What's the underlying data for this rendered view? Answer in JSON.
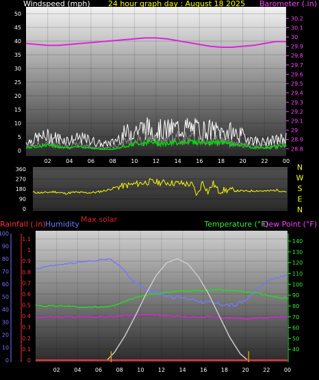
{
  "chart_data": [
    {
      "type": "line",
      "title": "24 hour graph day : August 18 2025",
      "ylabel_left": "Windspeed (mph)",
      "ylabel_right": "Barometer (.in)",
      "x_ticks": [
        "02",
        "04",
        "06",
        "08",
        "10",
        "12",
        "14",
        "16",
        "18",
        "20",
        "22",
        "00"
      ],
      "x_hours": [
        0,
        24
      ],
      "ylim_left": [
        0,
        50
      ],
      "yticks_left": [
        0,
        5,
        10,
        15,
        20,
        25,
        30,
        35,
        40,
        45,
        50
      ],
      "ylim_right": [
        28.78,
        30.25
      ],
      "yticks_right": [
        28.8,
        28.9,
        29,
        29.1,
        29.2,
        29.3,
        29.4,
        29.5,
        29.6,
        29.7,
        29.8,
        29.9,
        30,
        30.1,
        30.2
      ],
      "grid": true,
      "colors": {
        "gust": "#ffffff",
        "wind": "#888888",
        "avg": "#00dd00",
        "barometer": "#dd22dd",
        "axis_left": "#ffffff",
        "axis_right": "#ff44ff",
        "title": "#ffff00"
      },
      "series": [
        {
          "key": "barometer",
          "axis": "right",
          "x": [
            0,
            1,
            2,
            3,
            4,
            5,
            6,
            7,
            8,
            9,
            10,
            11,
            12,
            13,
            14,
            15,
            16,
            17,
            18,
            19,
            20,
            21,
            22,
            23,
            24
          ],
          "values": [
            29.93,
            29.92,
            29.91,
            29.91,
            29.92,
            29.93,
            29.94,
            29.95,
            29.96,
            29.97,
            29.98,
            29.99,
            29.99,
            29.98,
            29.96,
            29.94,
            29.92,
            29.9,
            29.89,
            29.89,
            29.9,
            29.91,
            29.93,
            29.95,
            29.95
          ]
        }
      ],
      "wind_bands": {
        "x": [
          0,
          1,
          2,
          3,
          4,
          5,
          6,
          7,
          8,
          9,
          10,
          11,
          12,
          13,
          14,
          15,
          16,
          17,
          18,
          19,
          20,
          21,
          22,
          23,
          24
        ],
        "gust": [
          4,
          6,
          7,
          6,
          5,
          6,
          5,
          3,
          4,
          8,
          10,
          11,
          10,
          10,
          11,
          11,
          10,
          10,
          9,
          9,
          7,
          5,
          4,
          5,
          6
        ],
        "wind": [
          2,
          3,
          3,
          3,
          2,
          3,
          2,
          1,
          2,
          4,
          5,
          6,
          5,
          5,
          6,
          6,
          5,
          5,
          5,
          4,
          3,
          2,
          2,
          2,
          3
        ],
        "avg": [
          1,
          1.5,
          2,
          1.5,
          1,
          1.5,
          1,
          0.5,
          0.5,
          1.5,
          2.5,
          3,
          3,
          2.5,
          3,
          3.5,
          3,
          3,
          3,
          2.5,
          2,
          1,
          1,
          1.5,
          2
        ]
      }
    },
    {
      "type": "line",
      "title": "",
      "ylabel": "",
      "ylim": [
        0,
        360
      ],
      "yticks": [
        0,
        90,
        180,
        270,
        360
      ],
      "direction_labels": [
        "N",
        "W",
        "S",
        "E",
        "N"
      ],
      "grid": true,
      "colors": {
        "direction": "#ffff00",
        "axis": "#ffffff",
        "labels": "#ffff00"
      },
      "series": [
        {
          "key": "wind_direction",
          "x": [
            0,
            1,
            2,
            3,
            4,
            5,
            6,
            7,
            8,
            9,
            10,
            11,
            12,
            13,
            14,
            15,
            15.5,
            16,
            16.5,
            17,
            17.5,
            18,
            19,
            20,
            21,
            22,
            23,
            24
          ],
          "values": [
            150,
            145,
            155,
            140,
            150,
            145,
            150,
            170,
            200,
            215,
            230,
            245,
            240,
            235,
            230,
            220,
            120,
            250,
            150,
            230,
            160,
            170,
            165,
            160,
            165,
            160,
            170,
            155
          ]
        }
      ]
    },
    {
      "type": "line",
      "title": "",
      "legend": [
        "Rainfall (.in)",
        "Humidity",
        "Max solar",
        "Temperature (°F)",
        "Dew Point (°F)"
      ],
      "ylim_left_humidity": [
        0,
        100
      ],
      "yticks_humidity": [
        0,
        10,
        20,
        30,
        40,
        50,
        60,
        70,
        80,
        90,
        100
      ],
      "ylim_rain": [
        0,
        1.15
      ],
      "yticks_rain": [
        0,
        0.1,
        0.2,
        0.3,
        0.4,
        0.5,
        0.6,
        0.7,
        0.8,
        0.9,
        1,
        1.1
      ],
      "ylim_right": [
        30,
        147
      ],
      "yticks_right": [
        40,
        50,
        60,
        70,
        80,
        90,
        100,
        110,
        120,
        130,
        140
      ],
      "grid": true,
      "colors": {
        "rain": "#ff3333",
        "humidity": "#7777ff",
        "solar": "#cccccc",
        "temperature": "#22dd22",
        "dewpoint": "#dd22dd",
        "axis_right": "#33ee33",
        "marker": "#c8a000"
      },
      "markers_x": [
        7.2,
        20.3
      ],
      "series": [
        {
          "key": "humidity",
          "axis": "humidity",
          "x": [
            0,
            1,
            2,
            3,
            4,
            5,
            6,
            7,
            8,
            9,
            10,
            11,
            12,
            13,
            14,
            15,
            16,
            17,
            18,
            19,
            20,
            21,
            22,
            23,
            24
          ],
          "values": [
            72,
            74,
            75,
            76,
            77,
            78,
            79,
            80,
            75,
            65,
            58,
            55,
            52,
            50,
            49,
            48,
            46,
            45,
            44,
            43,
            47,
            55,
            62,
            65,
            67
          ]
        },
        {
          "key": "temperature",
          "axis": "right",
          "x": [
            0,
            1,
            2,
            3,
            4,
            5,
            6,
            7,
            8,
            9,
            10,
            11,
            12,
            13,
            14,
            15,
            16,
            17,
            18,
            19,
            20,
            21,
            22,
            23,
            24
          ],
          "values": [
            81,
            80,
            80,
            80,
            79,
            79,
            79,
            79,
            82,
            86,
            89,
            91,
            92,
            93,
            94,
            94,
            94,
            95,
            95,
            94,
            93,
            92,
            90,
            88,
            87
          ]
        },
        {
          "key": "dewpoint",
          "axis": "right",
          "x": [
            0,
            1,
            2,
            3,
            4,
            5,
            6,
            7,
            8,
            9,
            10,
            11,
            12,
            13,
            14,
            15,
            16,
            17,
            18,
            19,
            20,
            21,
            22,
            23,
            24
          ],
          "values": [
            70,
            70,
            70,
            70,
            70,
            70,
            70,
            70,
            71,
            71,
            72,
            72,
            71,
            71,
            70,
            70,
            70,
            70,
            69,
            69,
            68,
            69,
            69,
            70,
            70
          ]
        },
        {
          "key": "max_solar",
          "axis": "humidity",
          "x": [
            6.8,
            7.5,
            8.5,
            9.5,
            10.5,
            11.5,
            12.5,
            13.5,
            14.5,
            15.5,
            16.5,
            17.5,
            18.5,
            19.5,
            20.2
          ],
          "values": [
            0,
            6,
            19,
            35,
            52,
            67,
            77,
            80,
            76,
            66,
            52,
            35,
            18,
            5,
            0
          ]
        },
        {
          "key": "rainfall",
          "axis": "rain",
          "x": [
            0,
            24
          ],
          "values": [
            0,
            0
          ]
        }
      ]
    }
  ]
}
